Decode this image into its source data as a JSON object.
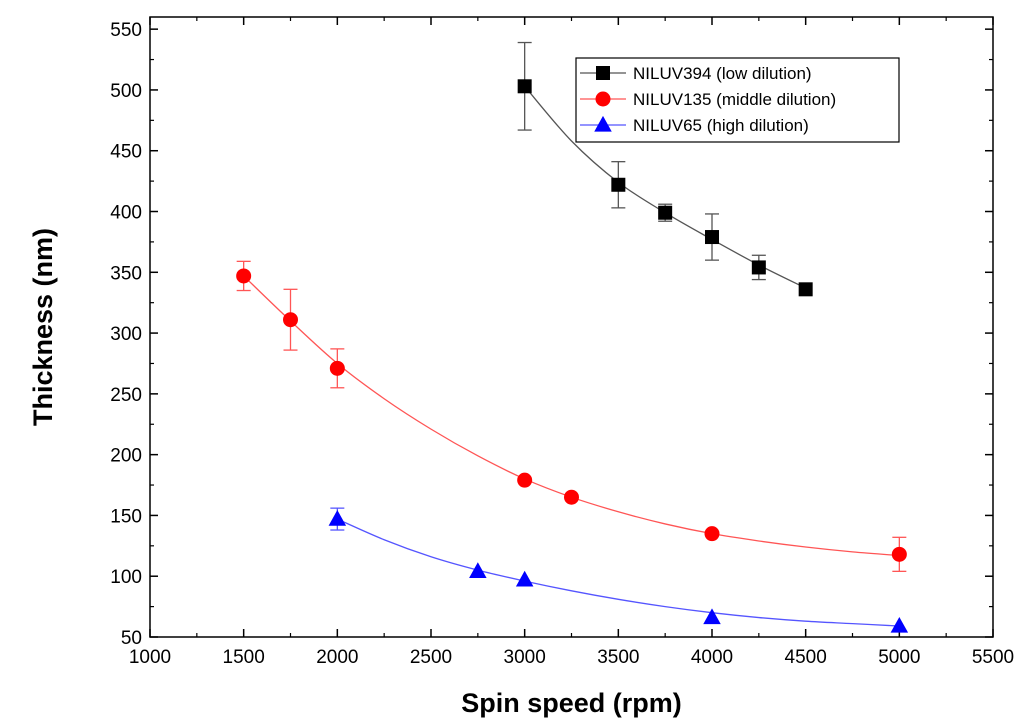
{
  "chart_data": {
    "type": "scatter",
    "title": "",
    "xlabel": "Spin speed (rpm)",
    "ylabel": "Thickness (nm)",
    "xlim": [
      1000,
      5500
    ],
    "ylim": [
      50,
      560
    ],
    "xticks": [
      1000,
      1500,
      2000,
      2500,
      3000,
      3500,
      4000,
      4500,
      5000,
      5500
    ],
    "yticks": [
      50,
      100,
      150,
      200,
      250,
      300,
      350,
      400,
      450,
      500,
      550
    ],
    "grid": false,
    "legend_position": "top-right",
    "series": [
      {
        "name": "NILUV394 (low dilution)",
        "marker": "square",
        "color": "#000000",
        "line_color": "#555555",
        "x": [
          3000,
          3500,
          3750,
          4000,
          4250,
          4500
        ],
        "y": [
          503,
          422,
          399,
          379,
          354,
          336
        ],
        "error": [
          36,
          19,
          7,
          19,
          10,
          0
        ],
        "fit": [
          [
            3000,
            503
          ],
          [
            3250,
            458
          ],
          [
            3500,
            424
          ],
          [
            3750,
            399
          ],
          [
            4000,
            377
          ],
          [
            4250,
            356
          ],
          [
            4500,
            337
          ]
        ]
      },
      {
        "name": "NILUV135 (middle dilution)",
        "marker": "circle",
        "color": "#ff0000",
        "line_color": "#ff5555",
        "x": [
          1500,
          1750,
          2000,
          3000,
          3250,
          4000,
          5000
        ],
        "y": [
          347,
          311,
          271,
          179,
          165,
          135,
          118
        ],
        "error": [
          12,
          25,
          16,
          0,
          0,
          0,
          14
        ],
        "fit": [
          [
            1500,
            347
          ],
          [
            1750,
            310
          ],
          [
            2000,
            275
          ],
          [
            2250,
            246
          ],
          [
            2500,
            221
          ],
          [
            2750,
            199
          ],
          [
            3000,
            180
          ],
          [
            3250,
            165
          ],
          [
            3500,
            153
          ],
          [
            3750,
            143
          ],
          [
            4000,
            135
          ],
          [
            4250,
            129
          ],
          [
            4500,
            124
          ],
          [
            4750,
            120
          ],
          [
            5000,
            117
          ]
        ]
      },
      {
        "name": "NILUV65 (high dilution)",
        "marker": "triangle",
        "color": "#0000ff",
        "line_color": "#5555ff",
        "x": [
          2000,
          2750,
          3000,
          4000,
          5000
        ],
        "y": [
          147,
          104,
          97,
          66,
          59
        ],
        "error": [
          9,
          0,
          0,
          0,
          0
        ],
        "fit": [
          [
            2000,
            147
          ],
          [
            2250,
            130
          ],
          [
            2500,
            116
          ],
          [
            2750,
            105
          ],
          [
            3000,
            96
          ],
          [
            3250,
            88
          ],
          [
            3500,
            81
          ],
          [
            3750,
            75
          ],
          [
            4000,
            70
          ],
          [
            4250,
            66
          ],
          [
            4500,
            63
          ],
          [
            4750,
            61
          ],
          [
            5000,
            59
          ]
        ]
      }
    ]
  }
}
